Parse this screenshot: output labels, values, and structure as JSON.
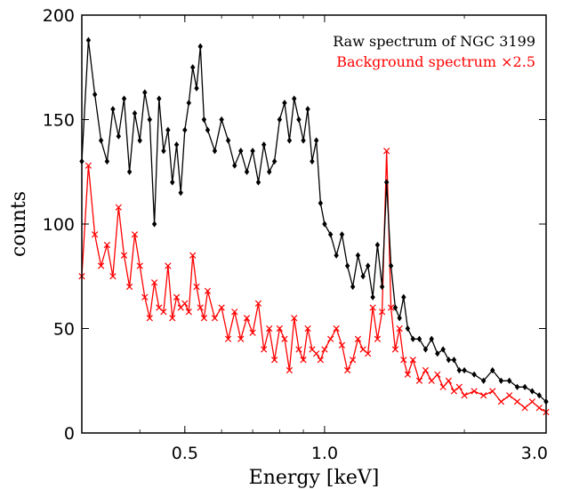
{
  "chart_data": {
    "type": "line",
    "xlabel": "Energy [keV]",
    "ylabel": "counts",
    "xscale": "log",
    "xlim": [
      0.3,
      3.0
    ],
    "ylim": [
      0,
      200
    ],
    "grid": false,
    "legend_position": "top-right",
    "xticks": [
      {
        "value": 0.5,
        "label": "0.5"
      },
      {
        "value": 1.0,
        "label": "1.0"
      },
      {
        "value": 3.0,
        "label": "3.0"
      }
    ],
    "yticks": [
      {
        "value": 0,
        "label": "0"
      },
      {
        "value": 50,
        "label": "50"
      },
      {
        "value": 100,
        "label": "100"
      },
      {
        "value": 150,
        "label": "150"
      },
      {
        "value": 200,
        "label": "200"
      }
    ],
    "series": [
      {
        "name": "Raw spectrum of NGC 3199",
        "color": "#000000",
        "marker": "diamond",
        "x": [
          0.3,
          0.31,
          0.32,
          0.33,
          0.34,
          0.35,
          0.36,
          0.37,
          0.38,
          0.39,
          0.4,
          0.41,
          0.42,
          0.43,
          0.44,
          0.45,
          0.46,
          0.47,
          0.48,
          0.49,
          0.5,
          0.51,
          0.52,
          0.53,
          0.54,
          0.55,
          0.56,
          0.58,
          0.6,
          0.62,
          0.64,
          0.66,
          0.68,
          0.7,
          0.72,
          0.74,
          0.76,
          0.78,
          0.8,
          0.82,
          0.84,
          0.86,
          0.88,
          0.9,
          0.92,
          0.94,
          0.96,
          0.98,
          1.0,
          1.03,
          1.06,
          1.09,
          1.12,
          1.15,
          1.18,
          1.21,
          1.24,
          1.27,
          1.3,
          1.33,
          1.36,
          1.39,
          1.42,
          1.45,
          1.48,
          1.51,
          1.55,
          1.6,
          1.65,
          1.7,
          1.75,
          1.8,
          1.85,
          1.9,
          1.95,
          2.0,
          2.1,
          2.2,
          2.3,
          2.4,
          2.5,
          2.6,
          2.7,
          2.8,
          2.9,
          3.0
        ],
        "y": [
          130,
          188,
          162,
          140,
          130,
          155,
          142,
          160,
          125,
          153,
          140,
          163,
          150,
          100,
          160,
          135,
          145,
          120,
          138,
          115,
          145,
          158,
          175,
          165,
          185,
          150,
          145,
          135,
          150,
          140,
          128,
          135,
          125,
          135,
          120,
          138,
          125,
          130,
          150,
          158,
          140,
          160,
          150,
          140,
          155,
          130,
          140,
          110,
          100,
          95,
          85,
          95,
          80,
          70,
          85,
          75,
          80,
          65,
          90,
          70,
          120,
          80,
          60,
          55,
          65,
          50,
          45,
          45,
          40,
          45,
          38,
          40,
          35,
          35,
          30,
          30,
          28,
          25,
          30,
          25,
          25,
          22,
          22,
          20,
          18,
          15
        ]
      },
      {
        "name": "Background spectrum ×2.5",
        "color": "#ff0000",
        "marker": "x",
        "x": [
          0.3,
          0.31,
          0.32,
          0.33,
          0.34,
          0.35,
          0.36,
          0.37,
          0.38,
          0.39,
          0.4,
          0.41,
          0.42,
          0.43,
          0.44,
          0.45,
          0.46,
          0.47,
          0.48,
          0.49,
          0.5,
          0.51,
          0.52,
          0.53,
          0.54,
          0.55,
          0.56,
          0.58,
          0.6,
          0.62,
          0.64,
          0.66,
          0.68,
          0.7,
          0.72,
          0.74,
          0.76,
          0.78,
          0.8,
          0.82,
          0.84,
          0.86,
          0.88,
          0.9,
          0.92,
          0.94,
          0.96,
          0.98,
          1.0,
          1.03,
          1.06,
          1.09,
          1.12,
          1.15,
          1.18,
          1.21,
          1.24,
          1.27,
          1.3,
          1.33,
          1.36,
          1.39,
          1.42,
          1.45,
          1.48,
          1.51,
          1.55,
          1.6,
          1.65,
          1.7,
          1.75,
          1.8,
          1.85,
          1.9,
          1.95,
          2.0,
          2.1,
          2.2,
          2.3,
          2.4,
          2.5,
          2.6,
          2.7,
          2.8,
          2.9,
          3.0
        ],
        "y": [
          75,
          128,
          95,
          80,
          90,
          75,
          108,
          85,
          70,
          95,
          80,
          65,
          55,
          72,
          60,
          58,
          80,
          55,
          65,
          60,
          62,
          58,
          85,
          70,
          60,
          55,
          68,
          55,
          60,
          45,
          58,
          45,
          55,
          48,
          62,
          40,
          50,
          35,
          50,
          45,
          30,
          55,
          40,
          35,
          50,
          40,
          38,
          35,
          40,
          45,
          50,
          42,
          30,
          35,
          45,
          40,
          38,
          60,
          45,
          58,
          135,
          60,
          40,
          50,
          35,
          28,
          35,
          25,
          30,
          25,
          28,
          22,
          25,
          20,
          22,
          18,
          20,
          18,
          20,
          15,
          18,
          15,
          12,
          15,
          12,
          10
        ]
      }
    ]
  }
}
